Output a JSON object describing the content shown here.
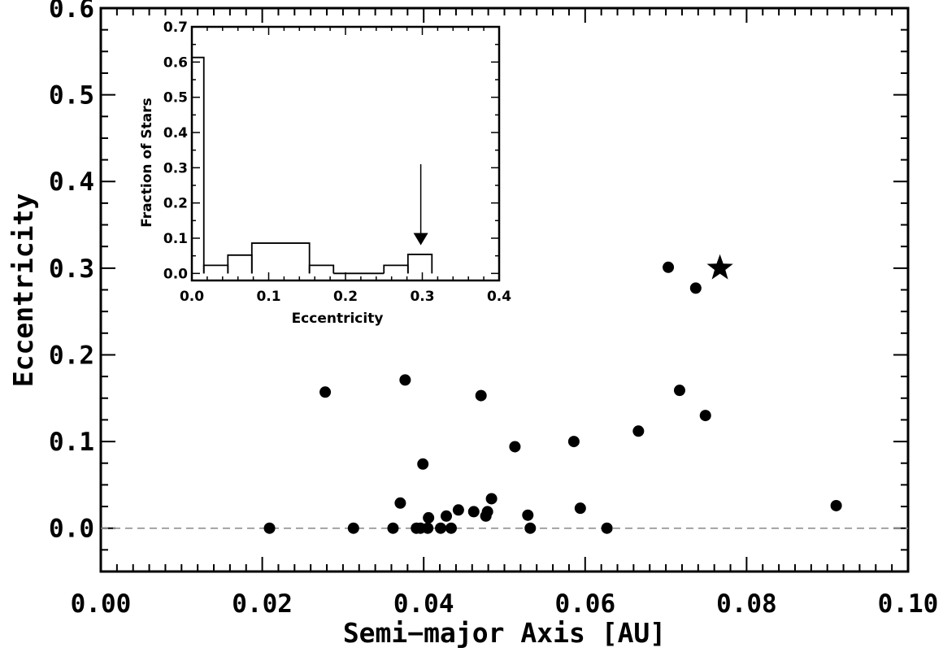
{
  "chart_data": [
    {
      "type": "scatter",
      "title": "",
      "xlabel": "Semi−major Axis [AU]",
      "ylabel": "Eccentricity",
      "xlim": [
        0.0,
        0.1
      ],
      "ylim": [
        -0.05,
        0.6
      ],
      "xticks": [
        0.0,
        0.02,
        0.04,
        0.06,
        0.08,
        0.1
      ],
      "xtick_labels": [
        "0.00",
        "0.02",
        "0.04",
        "0.06",
        "0.08",
        "0.10"
      ],
      "yticks": [
        0.0,
        0.1,
        0.2,
        0.3,
        0.4,
        0.5,
        0.6
      ],
      "ytick_labels": [
        "0.0",
        "0.1",
        "0.2",
        "0.3",
        "0.4",
        "0.5",
        "0.6"
      ],
      "grid": false,
      "reference_line": {
        "y": 0.0,
        "style": "dashed",
        "color": "#888888"
      },
      "marker_color": "#000000",
      "points": [
        {
          "x": 0.0209,
          "y": 0.0
        },
        {
          "x": 0.0278,
          "y": 0.157
        },
        {
          "x": 0.0313,
          "y": 0.0
        },
        {
          "x": 0.0362,
          "y": 0.0
        },
        {
          "x": 0.0371,
          "y": 0.029
        },
        {
          "x": 0.0377,
          "y": 0.171
        },
        {
          "x": 0.0391,
          "y": 0.0
        },
        {
          "x": 0.0396,
          "y": 0.0
        },
        {
          "x": 0.0399,
          "y": 0.074
        },
        {
          "x": 0.0405,
          "y": 0.0
        },
        {
          "x": 0.0406,
          "y": 0.012
        },
        {
          "x": 0.0421,
          "y": 0.0
        },
        {
          "x": 0.0428,
          "y": 0.014
        },
        {
          "x": 0.0434,
          "y": 0.0
        },
        {
          "x": 0.0443,
          "y": 0.021
        },
        {
          "x": 0.0462,
          "y": 0.019
        },
        {
          "x": 0.0471,
          "y": 0.153
        },
        {
          "x": 0.0477,
          "y": 0.014
        },
        {
          "x": 0.0479,
          "y": 0.019
        },
        {
          "x": 0.0484,
          "y": 0.034
        },
        {
          "x": 0.0513,
          "y": 0.094
        },
        {
          "x": 0.0529,
          "y": 0.015
        },
        {
          "x": 0.0532,
          "y": 0.0
        },
        {
          "x": 0.0586,
          "y": 0.1
        },
        {
          "x": 0.0594,
          "y": 0.023
        },
        {
          "x": 0.0627,
          "y": 0.0
        },
        {
          "x": 0.0666,
          "y": 0.112
        },
        {
          "x": 0.0703,
          "y": 0.301
        },
        {
          "x": 0.0717,
          "y": 0.159
        },
        {
          "x": 0.0737,
          "y": 0.277
        },
        {
          "x": 0.0749,
          "y": 0.13
        },
        {
          "x": 0.0911,
          "y": 0.026
        }
      ],
      "highlight_star": {
        "x": 0.0767,
        "y": 0.3
      }
    },
    {
      "type": "histogram",
      "title": "",
      "xlabel": "Eccentricity",
      "ylabel": "Fraction of Stars",
      "xlim": [
        0.0,
        0.4
      ],
      "ylim": [
        -0.02,
        0.7
      ],
      "xticks": [
        0.0,
        0.1,
        0.2,
        0.3,
        0.4
      ],
      "xtick_labels": [
        "0.0",
        "0.1",
        "0.2",
        "0.3",
        "0.4"
      ],
      "yticks": [
        0.0,
        0.1,
        0.2,
        0.3,
        0.4,
        0.5,
        0.6,
        0.7
      ],
      "ytick_labels": [
        "0.0",
        "0.1",
        "0.2",
        "0.3",
        "0.4",
        "0.5",
        "0.6",
        "0.7"
      ],
      "bin_edges": [
        0.0,
        0.0156,
        0.0469,
        0.0781,
        0.1531,
        0.1844,
        0.25,
        0.2813,
        0.3125
      ],
      "values": [
        0.613,
        0.023,
        0.052,
        0.086,
        0.023,
        0.0,
        0.023,
        0.054
      ],
      "arrow": {
        "x": 0.298,
        "y_from": 0.31,
        "y_to": 0.08
      }
    }
  ]
}
